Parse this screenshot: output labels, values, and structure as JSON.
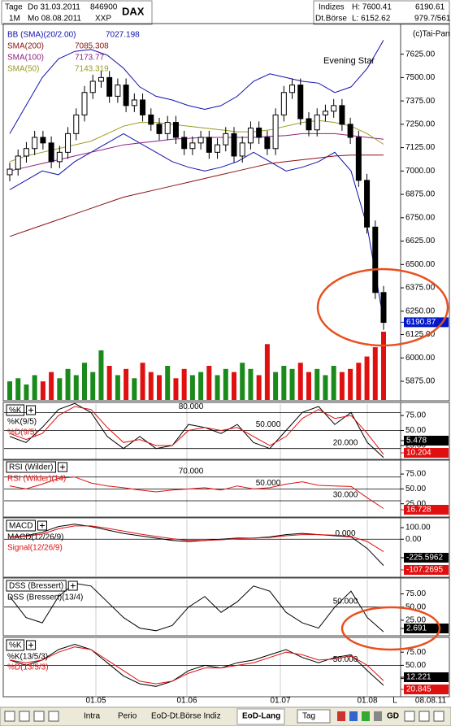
{
  "header": {
    "tage": "Tage",
    "date_from": "Do 31.03.2011",
    "code": "846900",
    "symbol": "DAX",
    "period": "1M",
    "date_to": "Mo 08.08.2011",
    "exchange_code": "XXP",
    "market": "Indizes",
    "high": "H: 7600.41",
    "last": "6190.61",
    "source": "Dt.Börse",
    "low": "L: 6152.62",
    "volume_info": "979.7/561"
  },
  "date_axis": {
    "labels": [
      "01.05",
      "01.06",
      "01.07",
      "01.08"
    ],
    "end_marker": "L",
    "end_date": "08.08.11"
  },
  "toolbar": {
    "tabs": [
      "Intra",
      "Perio",
      "EoD-Dt.Börse Indiz",
      "EoD-Lang"
    ],
    "period": "Tag",
    "gd": "GD"
  },
  "chart_data": [
    {
      "type": "candlestick",
      "copyright": "(c)Tai-Pan",
      "annotation": "Evening Star",
      "last": 6190.87,
      "ylim": [
        5775,
        7780
      ],
      "yticks": [
        {
          "value": 7625,
          "label": "7625.00"
        },
        {
          "value": 7500,
          "label": "7500.00"
        },
        {
          "value": 7375,
          "label": "7375.00"
        },
        {
          "value": 7250,
          "label": "7250.00"
        },
        {
          "value": 7125,
          "label": "7125.00"
        },
        {
          "value": 7000,
          "label": "7000.00"
        },
        {
          "value": 6875,
          "label": "6875.00"
        },
        {
          "value": 6750,
          "label": "6750.00"
        },
        {
          "value": 6625,
          "label": "6625.00"
        },
        {
          "value": 6500,
          "label": "6500.00"
        },
        {
          "value": 6375,
          "label": "6375.00"
        },
        {
          "value": 6250,
          "label": "6250.00"
        },
        {
          "value": 6125,
          "label": "6125.00"
        },
        {
          "value": 6000,
          "label": "6000.00"
        },
        {
          "value": 5875,
          "label": "5875.00"
        }
      ],
      "open": [
        6980,
        7010,
        7080,
        7120,
        7180,
        7150,
        7050,
        7100,
        7200,
        7300,
        7420,
        7480,
        7500,
        7400,
        7460,
        7350,
        7380,
        7300,
        7250,
        7200,
        7260,
        7180,
        7120,
        7150,
        7180,
        7100,
        7140,
        7200,
        7080,
        7150,
        7230,
        7180,
        7120,
        7300,
        7420,
        7460,
        7280,
        7220,
        7300,
        7320,
        7350,
        7250,
        7180,
        6950,
        6700,
        6350
      ],
      "high": [
        7045,
        7115,
        7155,
        7215,
        7215,
        7185,
        7135,
        7235,
        7335,
        7455,
        7515,
        7535,
        7535,
        7495,
        7495,
        7415,
        7415,
        7335,
        7285,
        7295,
        7295,
        7215,
        7185,
        7215,
        7215,
        7175,
        7235,
        7235,
        7185,
        7265,
        7265,
        7215,
        7335,
        7455,
        7495,
        7495,
        7315,
        7335,
        7355,
        7385,
        7385,
        7285,
        7215,
        6985,
        6735,
        6385
      ],
      "low": [
        6945,
        6975,
        7045,
        7085,
        7115,
        7015,
        7015,
        7065,
        7165,
        7265,
        7385,
        7445,
        7365,
        7365,
        7315,
        7315,
        7265,
        7215,
        7165,
        7165,
        7145,
        7085,
        7085,
        7115,
        7065,
        7065,
        7105,
        7045,
        7045,
        7115,
        7145,
        7085,
        7085,
        7265,
        7385,
        7245,
        7185,
        7185,
        7265,
        7285,
        7215,
        7145,
        6915,
        6665,
        6315,
        6150
      ],
      "close": [
        7010,
        7080,
        7120,
        7180,
        7150,
        7050,
        7100,
        7200,
        7300,
        7420,
        7480,
        7500,
        7400,
        7460,
        7350,
        7380,
        7300,
        7250,
        7200,
        7260,
        7180,
        7120,
        7150,
        7180,
        7100,
        7140,
        7200,
        7080,
        7150,
        7230,
        7180,
        7120,
        7300,
        7420,
        7460,
        7280,
        7220,
        7300,
        7320,
        7350,
        7250,
        7180,
        6950,
        6700,
        6350,
        6190
      ],
      "volume": [
        30,
        35,
        25,
        40,
        30,
        45,
        35,
        50,
        40,
        60,
        45,
        80,
        55,
        40,
        50,
        35,
        60,
        45,
        40,
        55,
        35,
        50,
        40,
        45,
        55,
        40,
        50,
        45,
        60,
        50,
        40,
        90,
        45,
        55,
        50,
        60,
        45,
        50,
        40,
        55,
        45,
        50,
        60,
        70,
        85,
        110
      ],
      "up_color": "#1a8a1a",
      "down_color": "#e01010",
      "overlays": [
        {
          "name": "BB (SMA)(20/2.00)",
          "color": "#1010b0",
          "readout": 7027.198,
          "values": [
            7200,
            7350,
            7500,
            7600,
            7640,
            7650,
            7620,
            7550,
            7450,
            7400,
            7380,
            7350,
            7330,
            7350,
            7400,
            7480,
            7520,
            7500,
            7480,
            7470,
            7420,
            7450,
            7550,
            7700
          ],
          "lower": [
            6900,
            6950,
            7000,
            6980,
            7050,
            7100,
            7150,
            7200,
            7150,
            7100,
            7050,
            7020,
            7000,
            7020,
            7050,
            7100,
            7050,
            7000,
            7020,
            7050,
            7100,
            7000,
            6700,
            6200
          ]
        },
        {
          "name": "SMA(200)",
          "color": "#8b1010",
          "readout": 7085.308,
          "values": [
            6650,
            6680,
            6710,
            6740,
            6770,
            6800,
            6830,
            6860,
            6880,
            6900,
            6920,
            6940,
            6960,
            6980,
            7000,
            7020,
            7040,
            7050,
            7060,
            7070,
            7080,
            7085,
            7085,
            7085
          ]
        },
        {
          "name": "SMA(100)",
          "color": "#8b2080",
          "readout": 7173.77,
          "values": [
            7000,
            7020,
            7040,
            7060,
            7080,
            7100,
            7120,
            7140,
            7150,
            7160,
            7170,
            7175,
            7180,
            7180,
            7180,
            7180,
            7185,
            7190,
            7200,
            7200,
            7200,
            7190,
            7180,
            7170
          ]
        },
        {
          "name": "SMA(50)",
          "color": "#9a9a20",
          "readout": 7143.319,
          "values": [
            7050,
            7080,
            7100,
            7120,
            7140,
            7160,
            7200,
            7240,
            7260,
            7260,
            7250,
            7240,
            7230,
            7220,
            7210,
            7210,
            7220,
            7240,
            7260,
            7270,
            7260,
            7240,
            7200,
            7143
          ]
        }
      ]
    },
    {
      "type": "line",
      "label": "%K",
      "ylim": [
        2,
        94
      ],
      "yticks": [
        {
          "value": 75,
          "label": "75.00"
        },
        {
          "value": 50,
          "label": "50.00"
        },
        {
          "value": 25,
          "label": "25.00"
        }
      ],
      "levels": [
        {
          "value": 80,
          "label": "80.000"
        },
        {
          "value": 50,
          "label": "50.000"
        },
        {
          "value": 20,
          "label": "20.000"
        }
      ],
      "series": [
        {
          "name": "%K(9/5)",
          "color": "#000000",
          "readout": 5.478,
          "values": [
            40,
            30,
            55,
            85,
            95,
            80,
            40,
            20,
            40,
            20,
            25,
            60,
            55,
            45,
            60,
            30,
            20,
            50,
            80,
            90,
            60,
            80,
            30,
            5
          ]
        },
        {
          "name": "%D(9/5)",
          "color": "#e01010",
          "readout": 10.204,
          "values": [
            45,
            35,
            45,
            75,
            90,
            85,
            55,
            30,
            35,
            25,
            25,
            50,
            55,
            50,
            55,
            40,
            25,
            40,
            70,
            85,
            70,
            75,
            45,
            10
          ]
        }
      ]
    },
    {
      "type": "line",
      "label": "RSI (Wilder)",
      "ylim": [
        4,
        97
      ],
      "yticks": [
        {
          "value": 75,
          "label": "75.00"
        },
        {
          "value": 50,
          "label": "50.00"
        },
        {
          "value": 25,
          "label": "25.00"
        }
      ],
      "levels": [
        {
          "value": 70,
          "label": "70.000"
        },
        {
          "value": 50,
          "label": "50.000"
        },
        {
          "value": 30,
          "label": "30.000"
        }
      ],
      "series": [
        {
          "name": "RSI (Wilder)(14)",
          "color": "#e01010",
          "readout": 16.728,
          "values": [
            55,
            50,
            58,
            68,
            70,
            60,
            55,
            52,
            48,
            45,
            48,
            50,
            52,
            48,
            55,
            50,
            52,
            58,
            62,
            56,
            55,
            54,
            35,
            17
          ]
        }
      ]
    },
    {
      "type": "line",
      "label": "MACD",
      "ylim": [
        -320,
        170
      ],
      "yticks": [
        {
          "value": 100,
          "label": "100.00"
        },
        {
          "value": 0,
          "label": "0.00"
        }
      ],
      "levels": [
        {
          "value": 0,
          "label": "0.000"
        }
      ],
      "series": [
        {
          "name": "MACD(12/26/9)",
          "color": "#000000",
          "readout": -225.5962,
          "values": [
            20,
            30,
            60,
            110,
            130,
            110,
            80,
            50,
            30,
            10,
            -10,
            -20,
            -10,
            0,
            10,
            10,
            20,
            40,
            50,
            40,
            30,
            20,
            -80,
            -226
          ]
        },
        {
          "name": "Signal(12/26/9)",
          "color": "#e01010",
          "readout": -107.2695,
          "values": [
            20,
            25,
            45,
            90,
            115,
            115,
            95,
            70,
            45,
            25,
            5,
            -10,
            -10,
            -5,
            5,
            10,
            15,
            30,
            40,
            40,
            35,
            25,
            -20,
            -107
          ]
        }
      ]
    },
    {
      "type": "line",
      "label": "DSS (Bressert)",
      "ylim": [
        -3,
        102
      ],
      "yticks": [
        {
          "value": 75,
          "label": "75.00"
        },
        {
          "value": 50,
          "label": "50.00"
        },
        {
          "value": 25,
          "label": "25.00"
        }
      ],
      "levels": [
        {
          "value": 50,
          "label": "50.000"
        }
      ],
      "series": [
        {
          "name": "DSS (Bressert)(13/4)",
          "color": "#000000",
          "readout": 2.691,
          "values": [
            70,
            30,
            20,
            70,
            95,
            90,
            60,
            30,
            10,
            5,
            15,
            50,
            70,
            40,
            60,
            90,
            80,
            40,
            20,
            10,
            50,
            80,
            30,
            3
          ]
        }
      ]
    },
    {
      "type": "line",
      "label": "%K",
      "ylim": [
        -8,
        100
      ],
      "yticks": [
        {
          "value": 75,
          "label": "75.00"
        },
        {
          "value": 50,
          "label": "50.00"
        },
        {
          "value": 25,
          "label": "25.00"
        }
      ],
      "levels": [
        {
          "value": 50,
          "label": "50.000"
        }
      ],
      "series": [
        {
          "name": "%K(13/5/3)",
          "color": "#000000",
          "readout": 12.221,
          "values": [
            60,
            50,
            60,
            80,
            90,
            80,
            55,
            30,
            15,
            10,
            20,
            40,
            50,
            45,
            55,
            60,
            70,
            80,
            65,
            55,
            65,
            70,
            40,
            12
          ]
        },
        {
          "name": "%D(13/5/3)",
          "color": "#e01010",
          "readout": 20.845,
          "values": [
            60,
            55,
            60,
            75,
            85,
            80,
            60,
            40,
            20,
            15,
            20,
            35,
            45,
            45,
            50,
            55,
            65,
            75,
            70,
            60,
            62,
            68,
            50,
            21
          ]
        }
      ]
    }
  ]
}
